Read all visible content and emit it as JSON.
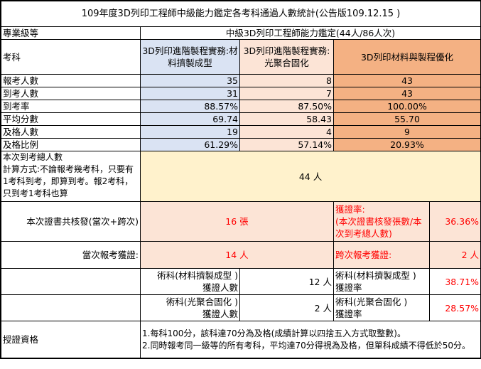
{
  "title": "109年度3D列印工程師中級能力鑑定各考科通過人數統計(公告版109.12.15 )",
  "level_label": "專業級等",
  "level_value": "中級3D列印工程師能力鑑定(44人/86人次)",
  "subject_label": "考科",
  "subjects": [
    "3D列印進階製程實務:材料擠製成型",
    "3D列印進階製程實務:光聚合固化",
    "3D列印材料與製程優化"
  ],
  "rows": [
    {
      "label": "報考人數",
      "values": [
        "35",
        "8",
        "43"
      ]
    },
    {
      "label": "到考人數",
      "values": [
        "31",
        "7",
        "43"
      ]
    },
    {
      "label": "到考率",
      "values": [
        "88.57%",
        "87.50%",
        "100.00%"
      ]
    },
    {
      "label": "平均分數",
      "values": [
        "69.74",
        "58.43",
        "55.70"
      ]
    },
    {
      "label": "及格人數",
      "values": [
        "19",
        "4",
        "9"
      ]
    },
    {
      "label": "及格比例",
      "values": [
        "61.29%",
        "57.14%",
        "20.93%"
      ]
    }
  ],
  "total_attendees": {
    "label_lines": [
      "本次到考總人數",
      "計算方式:不論報考幾考科，只要有1考科到考，即算到考。報2考科，只到考1考科也算"
    ],
    "value": "44 人"
  },
  "certificates": {
    "label": "本次證書共核發(當次+跨次)",
    "value": "16 張",
    "rate_label_lines": [
      "獲證率:",
      "(本次證書核發張數/本次到考總人數)"
    ],
    "rate_value": "36.36%"
  },
  "current": {
    "label": "當次報考獲證:",
    "value": "14 人",
    "cross_label": "跨次報考獲證:",
    "cross_value": "2 人"
  },
  "practical": [
    {
      "count_label": [
        "術科(材料擠製成型 )",
        "獲證人數"
      ],
      "count": "12 人",
      "rate_label": [
        "術科(材料擠製成型 )",
        "獲證率"
      ],
      "rate": "38.71%"
    },
    {
      "count_label": [
        "術科(光聚合固化 )",
        "獲證人數"
      ],
      "count": "2 人",
      "rate_label": [
        "術科(光聚合固化 )",
        "獲證率"
      ],
      "rate": "28.57%"
    }
  ],
  "qualification": {
    "label": "授證資格",
    "lines": [
      "1.每科100分，該科達70分為及格(成績計算以四捨五入方式取整數)。",
      "2.同時報考同一級等的所有考科，平均達70分得視為及格，但單科成績不得低於50分。"
    ]
  },
  "colors": {
    "blue": "#dae3f3",
    "peach": "#fce4d6",
    "orange": "#f4b183",
    "yellow": "#fff2cc",
    "red": "#ff0000"
  }
}
